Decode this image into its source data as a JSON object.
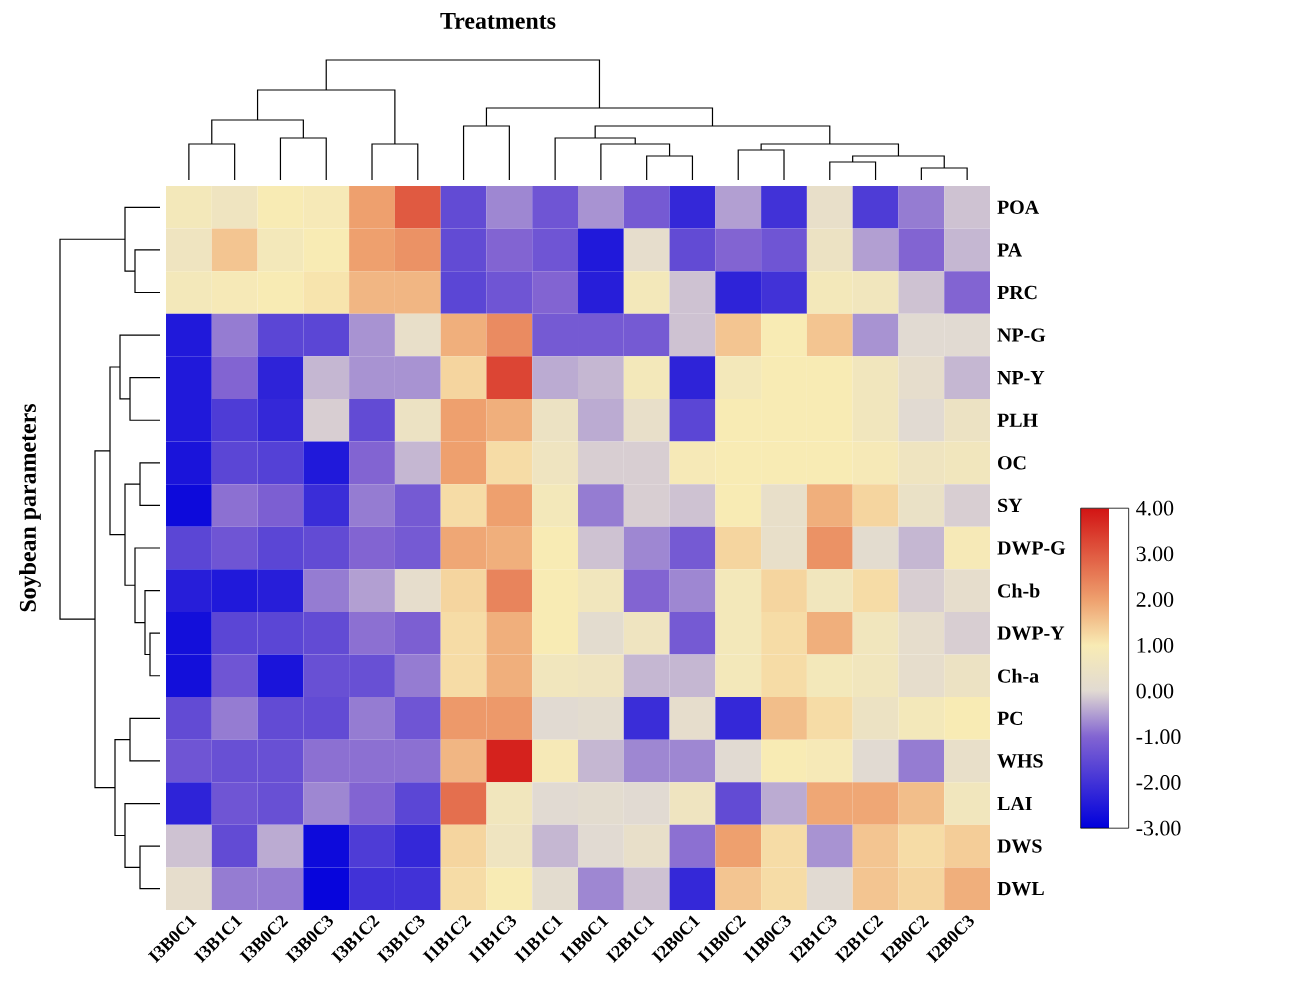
{
  "chart_data": {
    "type": "heatmap",
    "title": "Treatments",
    "ylabel": "Soybean parameters",
    "categories": [
      "I3B0C1",
      "I3B1C1",
      "I3B0C2",
      "I3B0C3",
      "I3B1C2",
      "I3B1C3",
      "I1B1C2",
      "I1B1C3",
      "I1B1C1",
      "I1B0C1",
      "I2B1C1",
      "I2B0C1",
      "I1B0C2",
      "I1B0C3",
      "I2B1C3",
      "I2B1C2",
      "I2B0C2",
      "I2B0C3"
    ],
    "y_categories": [
      "POA",
      "PA",
      "PRC",
      "NP-G",
      "NP-Y",
      "PLH",
      "OC",
      "SY",
      "DWP-G",
      "Ch-b",
      "DWP-Y",
      "Ch-a",
      "PC",
      "WHS",
      "LAI",
      "DWS",
      "DWL"
    ],
    "cells": [
      [
        0.8,
        0.6,
        1.0,
        0.9,
        2.0,
        3.0,
        -1.5,
        -0.7,
        -1.3,
        -0.6,
        -1.2,
        -2.2,
        -0.5,
        -2.0,
        0.3,
        -1.8,
        -0.8,
        -0.2
      ],
      [
        0.6,
        1.5,
        0.8,
        1.0,
        2.0,
        2.2,
        -1.5,
        -1.0,
        -1.3,
        -2.5,
        0.2,
        -1.5,
        -1.0,
        -1.3,
        0.5,
        -0.5,
        -1.0,
        -0.3
      ],
      [
        0.8,
        0.9,
        1.0,
        1.1,
        1.7,
        1.7,
        -1.6,
        -1.3,
        -1.0,
        -2.4,
        0.8,
        -0.2,
        -2.3,
        -2.0,
        0.8,
        0.7,
        -0.2,
        -1.0
      ],
      [
        -2.5,
        -0.8,
        -1.6,
        -1.6,
        -0.6,
        0.3,
        1.8,
        2.3,
        -1.2,
        -1.2,
        -1.2,
        -0.2,
        1.5,
        1.0,
        1.5,
        -0.6,
        0.0,
        0.0
      ],
      [
        -2.5,
        -1.0,
        -2.3,
        -0.3,
        -0.6,
        -0.6,
        1.3,
        3.3,
        -0.4,
        -0.3,
        0.8,
        -2.3,
        0.8,
        1.0,
        1.0,
        0.7,
        0.2,
        -0.3
      ],
      [
        -2.5,
        -1.8,
        -2.2,
        -0.1,
        -1.5,
        0.5,
        2.0,
        1.8,
        0.5,
        -0.4,
        0.3,
        -1.6,
        1.0,
        1.0,
        1.0,
        0.7,
        0.0,
        0.5
      ],
      [
        -2.6,
        -1.6,
        -1.7,
        -2.5,
        -1.0,
        -0.3,
        2.0,
        1.2,
        0.6,
        -0.1,
        -0.1,
        0.9,
        1.0,
        1.0,
        1.0,
        0.9,
        0.6,
        0.7
      ],
      [
        -2.8,
        -0.9,
        -1.1,
        -2.1,
        -0.8,
        -1.2,
        1.2,
        2.0,
        0.8,
        -0.8,
        -0.1,
        -0.2,
        1.0,
        0.3,
        1.8,
        1.3,
        0.4,
        -0.1
      ],
      [
        -1.6,
        -1.3,
        -1.6,
        -1.5,
        -1.0,
        -1.2,
        1.9,
        1.8,
        1.0,
        -0.2,
        -0.7,
        -1.2,
        1.3,
        0.3,
        2.2,
        0.1,
        -0.3,
        0.9
      ],
      [
        -2.4,
        -2.5,
        -2.4,
        -0.8,
        -0.5,
        0.2,
        1.3,
        2.4,
        1.0,
        0.7,
        -1.0,
        -0.7,
        0.8,
        1.3,
        0.7,
        1.2,
        -0.1,
        0.2
      ],
      [
        -2.7,
        -1.6,
        -1.6,
        -1.5,
        -0.9,
        -1.1,
        1.2,
        1.8,
        1.0,
        0.1,
        0.6,
        -1.2,
        0.8,
        1.2,
        1.8,
        0.7,
        0.2,
        -0.1
      ],
      [
        -2.7,
        -1.3,
        -2.6,
        -1.4,
        -1.4,
        -0.8,
        1.2,
        1.8,
        0.7,
        0.6,
        -0.3,
        -0.3,
        0.8,
        1.2,
        0.8,
        0.7,
        0.2,
        0.5
      ],
      [
        -1.5,
        -0.8,
        -1.5,
        -1.5,
        -0.8,
        -1.3,
        2.1,
        2.1,
        0.0,
        0.1,
        -2.1,
        0.2,
        -2.2,
        1.6,
        1.2,
        0.5,
        0.8,
        1.0
      ],
      [
        -1.3,
        -1.4,
        -1.4,
        -0.9,
        -0.9,
        -0.9,
        1.7,
        3.8,
        0.9,
        -0.3,
        -0.7,
        -0.7,
        0.0,
        1.0,
        0.9,
        0.0,
        -0.8,
        0.3
      ],
      [
        -2.3,
        -1.3,
        -1.4,
        -0.7,
        -1.0,
        -1.6,
        2.7,
        0.7,
        0.0,
        0.1,
        0.0,
        0.6,
        -1.5,
        -0.4,
        1.9,
        1.9,
        1.6,
        0.7
      ],
      [
        -0.2,
        -1.5,
        -0.4,
        -2.8,
        -1.8,
        -2.2,
        1.3,
        0.6,
        -0.3,
        0.0,
        0.3,
        -0.9,
        2.0,
        1.2,
        -0.6,
        1.5,
        1.2,
        1.4
      ],
      [
        0.2,
        -0.8,
        -0.8,
        -2.9,
        -2.0,
        -2.0,
        1.2,
        1.0,
        0.1,
        -0.7,
        -0.2,
        -2.2,
        1.5,
        1.2,
        0.0,
        1.5,
        1.3,
        1.8
      ]
    ],
    "clim": [
      -3,
      4
    ],
    "cticks": [
      {
        "value": -3,
        "label": "-3.00"
      },
      {
        "value": -2,
        "label": "-2.00"
      },
      {
        "value": -1,
        "label": "-1.00"
      },
      {
        "value": 0,
        "label": "0.00"
      },
      {
        "value": 1,
        "label": "1.00"
      },
      {
        "value": 2,
        "label": "2.00"
      },
      {
        "value": 3,
        "label": "3.00"
      },
      {
        "value": 4,
        "label": "4.00"
      }
    ]
  }
}
